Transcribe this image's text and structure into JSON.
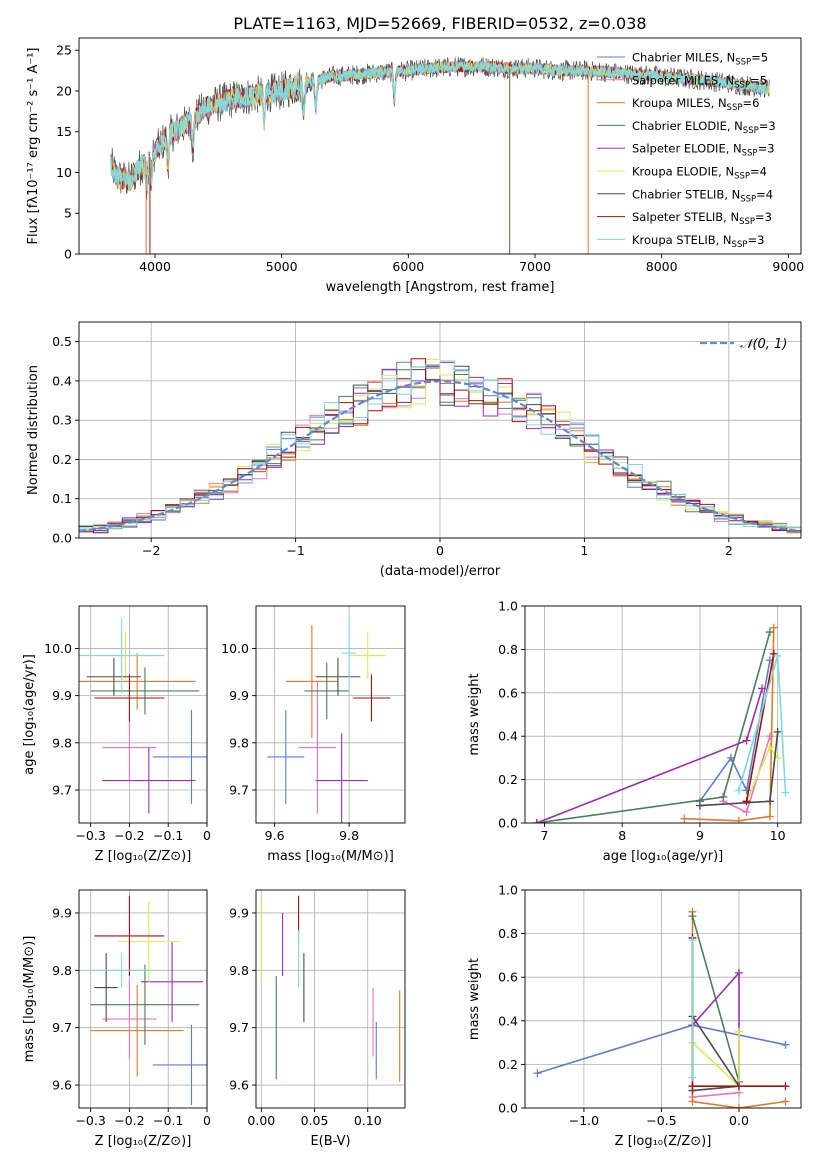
{
  "figure_title": "PLATE=1163, MJD=52669, FIBERID=0532, z=0.038",
  "colors": {
    "Chabrier MILES": "#5b7fd1",
    "Salpeter MILES": "#e377c2",
    "Kroupa MILES": "#e07b28",
    "Chabrier ELODIE": "#4e7d5a",
    "Salpeter ELODIE": "#9b2eb0",
    "Kroupa ELODIE": "#dce85a",
    "Chabrier STELIB": "#4a4a4a",
    "Salpeter STELIB": "#a61010",
    "Kroupa STELIB": "#7fd9de",
    "gaussian": "#5b8ad6",
    "grid": "#b0b0b0"
  },
  "chart_data": [
    {
      "id": "spectrum",
      "type": "line",
      "xlabel": "wavelength [Angstrom, rest frame]",
      "ylabel": "Flux [fλ10⁻¹⁷ erg cm⁻² s⁻¹ A⁻¹]",
      "xlim": [
        3400,
        9100
      ],
      "ylim": [
        0,
        26.5
      ],
      "xticks": [
        4000,
        5000,
        6000,
        7000,
        8000,
        9000
      ],
      "yticks": [
        0,
        5,
        10,
        15,
        20,
        25
      ],
      "continuum": {
        "x": [
          3650,
          3700,
          3800,
          3900,
          4000,
          4100,
          4200,
          4300,
          4400,
          4600,
          4800,
          5000,
          5200,
          5400,
          5600,
          5800,
          6000,
          6200,
          6400,
          6600,
          6800,
          7000,
          7200,
          7400,
          7600,
          7800,
          8000,
          8200,
          8400,
          8600,
          8850
        ],
        "y": [
          11,
          9.5,
          9,
          11,
          12.5,
          14.5,
          15.5,
          16.5,
          18,
          19,
          19.5,
          20,
          21,
          21.8,
          22,
          22.3,
          22.5,
          22.8,
          23,
          23,
          22.8,
          22.8,
          22.5,
          22.5,
          22.3,
          22,
          21.8,
          21.5,
          21.2,
          20.8,
          20.3
        ]
      },
      "legend_position": "upper-right",
      "legend": [
        {
          "name": "Chabrier MILES",
          "n_ssp": "5"
        },
        {
          "name": "Salpeter MILES",
          "n_ssp": "5"
        },
        {
          "name": "Kroupa MILES",
          "n_ssp": "6"
        },
        {
          "name": "Chabrier ELODIE",
          "n_ssp": "3"
        },
        {
          "name": "Salpeter ELODIE",
          "n_ssp": "3"
        },
        {
          "name": "Kroupa ELODIE",
          "n_ssp": "4"
        },
        {
          "name": "Chabrier STELIB",
          "n_ssp": "4"
        },
        {
          "name": "Salpeter STELIB",
          "n_ssp": "3"
        },
        {
          "name": "Kroupa STELIB",
          "n_ssp": "3"
        }
      ],
      "ssp_label": "N",
      "ssp_subscript": "SSP"
    },
    {
      "id": "residuals",
      "type": "histogram",
      "xlabel": "(data-model)/error",
      "ylabel": "Normed distribution",
      "xlim": [
        -2.5,
        2.5
      ],
      "ylim": [
        0,
        0.55
      ],
      "xticks": [
        -2,
        -1,
        0,
        1,
        2
      ],
      "xticklabels": [
        "−2",
        "−1",
        "0",
        "1",
        "2"
      ],
      "yticks": [
        0.0,
        0.1,
        0.2,
        0.3,
        0.4,
        0.5
      ],
      "bin_width": 0.1,
      "bin_start": -2.5,
      "gaussian_label": "𝒩(0, 1)",
      "legend_position": "upper-right",
      "grid": true
    },
    {
      "id": "z_age",
      "type": "errorbar",
      "xlabel": "Z [log₁₀(Z/Z⊙)]",
      "ylabel": "age  [log₁₀(age/yr)]",
      "xlim": [
        -0.33,
        0.0
      ],
      "ylim": [
        9.63,
        10.09
      ],
      "xticks": [
        -0.3,
        -0.2,
        -0.1,
        0.0
      ],
      "yticks": [
        9.7,
        9.8,
        9.9,
        10.0
      ],
      "points": [
        {
          "model": "Chabrier MILES",
          "x": -0.04,
          "xerr": 0.1,
          "y": 9.77,
          "yerr": 0.1
        },
        {
          "model": "Salpeter MILES",
          "x": -0.2,
          "xerr": 0.07,
          "y": 9.79,
          "yerr": 0.07
        },
        {
          "model": "Kroupa MILES",
          "x": -0.18,
          "xerr": 0.15,
          "y": 9.93,
          "yerr": 0.06
        },
        {
          "model": "Chabrier ELODIE",
          "x": -0.16,
          "xerr": 0.14,
          "y": 9.91,
          "yerr": 0.05
        },
        {
          "model": "Salpeter ELODIE",
          "x": -0.15,
          "xerr": 0.12,
          "y": 9.72,
          "yerr": 0.07
        },
        {
          "model": "Kroupa ELODIE",
          "x": -0.21,
          "xerr": 0.09,
          "y": 9.985,
          "yerr": 0.05
        },
        {
          "model": "Chabrier STELIB",
          "x": -0.24,
          "xerr": 0.07,
          "y": 9.94,
          "yerr": 0.04
        },
        {
          "model": "Salpeter STELIB",
          "x": -0.2,
          "xerr": 0.09,
          "y": 9.895,
          "yerr": 0.05
        },
        {
          "model": "Kroupa STELIB",
          "x": -0.22,
          "xerr": 0.11,
          "y": 9.985,
          "yerr": 0.08
        }
      ]
    },
    {
      "id": "mass_age",
      "type": "errorbar",
      "xlabel": "mass [log₁₀(M/M⊙)]",
      "ylabel": "",
      "xlim": [
        9.55,
        9.95
      ],
      "ylim": [
        9.63,
        10.09
      ],
      "xticks": [
        9.6,
        9.8
      ],
      "yticks": [
        9.7,
        9.8,
        9.9,
        10.0
      ],
      "points": [
        {
          "model": "Chabrier MILES",
          "x": 9.63,
          "xerr": 0.05,
          "y": 9.77,
          "yerr": 0.1
        },
        {
          "model": "Salpeter MILES",
          "x": 9.715,
          "xerr": 0.05,
          "y": 9.79,
          "yerr": 0.14
        },
        {
          "model": "Kroupa MILES",
          "x": 9.7,
          "xerr": 0.07,
          "y": 9.93,
          "yerr": 0.12
        },
        {
          "model": "Chabrier ELODIE",
          "x": 9.74,
          "xerr": 0.06,
          "y": 9.91,
          "yerr": 0.06
        },
        {
          "model": "Salpeter ELODIE",
          "x": 9.78,
          "xerr": 0.07,
          "y": 9.72,
          "yerr": 0.1
        },
        {
          "model": "Kroupa ELODIE",
          "x": 9.85,
          "xerr": 0.05,
          "y": 9.985,
          "yerr": 0.05
        },
        {
          "model": "Chabrier STELIB",
          "x": 9.77,
          "xerr": 0.06,
          "y": 9.94,
          "yerr": 0.04
        },
        {
          "model": "Salpeter STELIB",
          "x": 9.86,
          "xerr": 0.05,
          "y": 9.895,
          "yerr": 0.05
        },
        {
          "model": "Kroupa STELIB",
          "x": 9.8,
          "xerr": 0.02,
          "y": 9.99,
          "yerr": 0.08
        }
      ]
    },
    {
      "id": "age_weight",
      "type": "line",
      "xlabel": "age  [log₁₀(age/yr)]",
      "ylabel": "mass weight",
      "xlim": [
        6.75,
        10.3
      ],
      "ylim": [
        0,
        1.0
      ],
      "xticks": [
        7,
        8,
        9,
        10
      ],
      "yticks": [
        0.0,
        0.2,
        0.4,
        0.6,
        0.8,
        1.0
      ],
      "series": [
        {
          "model": "Chabrier MILES",
          "x": [
            9.0,
            9.4,
            9.6,
            9.9
          ],
          "y": [
            0.1,
            0.3,
            0.15,
            0.75
          ]
        },
        {
          "model": "Salpeter MILES",
          "x": [
            9.3,
            9.6,
            9.9
          ],
          "y": [
            0.1,
            0.05,
            0.4
          ]
        },
        {
          "model": "Kroupa MILES",
          "x": [
            8.8,
            9.5,
            9.9,
            9.95
          ],
          "y": [
            0.02,
            0.01,
            0.03,
            0.9
          ]
        },
        {
          "model": "Chabrier ELODIE",
          "x": [
            6.9,
            9.3,
            9.9
          ],
          "y": [
            0.0,
            0.12,
            0.88
          ]
        },
        {
          "model": "Salpeter ELODIE",
          "x": [
            6.9,
            9.6,
            9.8
          ],
          "y": [
            0.0,
            0.38,
            0.62
          ]
        },
        {
          "model": "Kroupa ELODIE",
          "x": [
            9.6,
            9.9,
            10.0
          ],
          "y": [
            0.1,
            0.35,
            0.3
          ]
        },
        {
          "model": "Chabrier STELIB",
          "x": [
            9.0,
            9.9,
            10.0
          ],
          "y": [
            0.08,
            0.1,
            0.42
          ]
        },
        {
          "model": "Salpeter STELIB",
          "x": [
            9.6,
            9.95
          ],
          "y": [
            0.1,
            0.78
          ]
        },
        {
          "model": "Kroupa STELIB",
          "x": [
            9.5,
            10.0,
            10.1
          ],
          "y": [
            0.15,
            0.77,
            0.14
          ]
        }
      ]
    },
    {
      "id": "z_mass",
      "type": "errorbar",
      "xlabel": "Z [log₁₀(Z/Z⊙)]",
      "ylabel": "mass [log₁₀(M/M⊙)]",
      "xlim": [
        -0.33,
        0.0
      ],
      "ylim": [
        9.56,
        9.94
      ],
      "xticks": [
        -0.3,
        -0.2,
        -0.1,
        0.0
      ],
      "yticks": [
        9.6,
        9.7,
        9.8,
        9.9
      ],
      "points": [
        {
          "model": "Chabrier MILES",
          "x": -0.04,
          "xerr": 0.1,
          "y": 9.635,
          "yerr": 0.07
        },
        {
          "model": "Salpeter MILES",
          "x": -0.2,
          "xerr": 0.07,
          "y": 9.715,
          "yerr": 0.07
        },
        {
          "model": "Kroupa MILES",
          "x": -0.18,
          "xerr": 0.12,
          "y": 9.695,
          "yerr": 0.08
        },
        {
          "model": "Chabrier ELODIE",
          "x": -0.16,
          "xerr": 0.14,
          "y": 9.74,
          "yerr": 0.07
        },
        {
          "model": "Salpeter ELODIE",
          "x": -0.09,
          "xerr": 0.08,
          "y": 9.78,
          "yerr": 0.07
        },
        {
          "model": "Kroupa ELODIE",
          "x": -0.15,
          "xerr": 0.08,
          "y": 9.85,
          "yerr": 0.07
        },
        {
          "model": "Chabrier STELIB",
          "x": -0.26,
          "xerr": 0.03,
          "y": 9.77,
          "yerr": 0.06
        },
        {
          "model": "Salpeter STELIB",
          "x": -0.2,
          "xerr": 0.09,
          "y": 9.86,
          "yerr": 0.07
        },
        {
          "model": "Kroupa STELIB",
          "x": -0.22,
          "xerr": 0.08,
          "y": 9.8,
          "yerr": 0.03
        }
      ]
    },
    {
      "id": "ebv_mass",
      "type": "errorbar",
      "xlabel": "E(B-V)",
      "ylabel": "",
      "xlim": [
        -0.005,
        0.135
      ],
      "ylim": [
        9.56,
        9.94
      ],
      "xticks": [
        0.0,
        0.05,
        0.1
      ],
      "xticklabels": [
        "0.00",
        "0.05",
        "0.10"
      ],
      "yticks": [
        9.6,
        9.7,
        9.8,
        9.9
      ],
      "points": [
        {
          "model": "Chabrier MILES",
          "x": 0.108,
          "y": 9.66,
          "yerr": 0.05
        },
        {
          "model": "Salpeter MILES",
          "x": 0.105,
          "y": 9.71,
          "yerr": 0.06
        },
        {
          "model": "Kroupa MILES",
          "x": 0.13,
          "y": 9.685,
          "yerr": 0.08
        },
        {
          "model": "Chabrier ELODIE",
          "x": 0.014,
          "y": 9.7,
          "yerr": 0.09
        },
        {
          "model": "Salpeter ELODIE",
          "x": 0.02,
          "y": 9.845,
          "yerr": 0.055
        },
        {
          "model": "Kroupa ELODIE",
          "x": 0.0,
          "y": 9.85,
          "yerr": 0.07
        },
        {
          "model": "Chabrier STELIB",
          "x": 0.04,
          "y": 9.77,
          "yerr": 0.06
        },
        {
          "model": "Salpeter STELIB",
          "x": 0.035,
          "y": 9.89,
          "yerr": 0.04
        },
        {
          "model": "Kroupa STELIB",
          "x": 0.035,
          "y": 9.82,
          "yerr": 0.05
        }
      ]
    },
    {
      "id": "z_weight",
      "type": "line",
      "xlabel": "Z [log₁₀(Z/Z⊙)]",
      "ylabel": "mass weight",
      "xlim": [
        -1.38,
        0.4
      ],
      "ylim": [
        0,
        1.0
      ],
      "xticks": [
        -1.0,
        -0.5,
        0.0
      ],
      "xticklabels": [
        "−1.0",
        "−0.5",
        "0.0"
      ],
      "yticks": [
        0.0,
        0.2,
        0.4,
        0.6,
        0.8,
        1.0
      ],
      "series": [
        {
          "model": "Chabrier MILES",
          "x": [
            -1.3,
            -0.3,
            0.3
          ],
          "y": [
            0.16,
            0.38,
            0.29
          ]
        },
        {
          "model": "Salpeter MILES",
          "x": [
            -0.3,
            0.0
          ],
          "y": [
            0.05,
            0.07
          ]
        },
        {
          "model": "Kroupa MILES",
          "x": [
            -0.3,
            -0.3,
            0.0,
            0.3
          ],
          "y": [
            0.9,
            0.03,
            0.0,
            0.03
          ]
        },
        {
          "model": "Chabrier ELODIE",
          "x": [
            -0.3,
            0.0
          ],
          "y": [
            0.88,
            0.12
          ]
        },
        {
          "model": "Salpeter ELODIE",
          "x": [
            -0.3,
            0.0,
            0.0
          ],
          "y": [
            0.38,
            0.62,
            0.1
          ]
        },
        {
          "model": "Kroupa ELODIE",
          "x": [
            -0.3,
            0.0,
            0.0
          ],
          "y": [
            0.3,
            0.1,
            0.35
          ]
        },
        {
          "model": "Chabrier STELIB",
          "x": [
            -0.3,
            0.0,
            -0.3
          ],
          "y": [
            0.42,
            0.1,
            0.08
          ]
        },
        {
          "model": "Salpeter STELIB",
          "x": [
            -0.3,
            -0.3,
            0.3
          ],
          "y": [
            0.78,
            0.1,
            0.1
          ]
        },
        {
          "model": "Kroupa STELIB",
          "x": [
            -0.3,
            -0.3
          ],
          "y": [
            0.77,
            0.14
          ]
        }
      ]
    }
  ]
}
